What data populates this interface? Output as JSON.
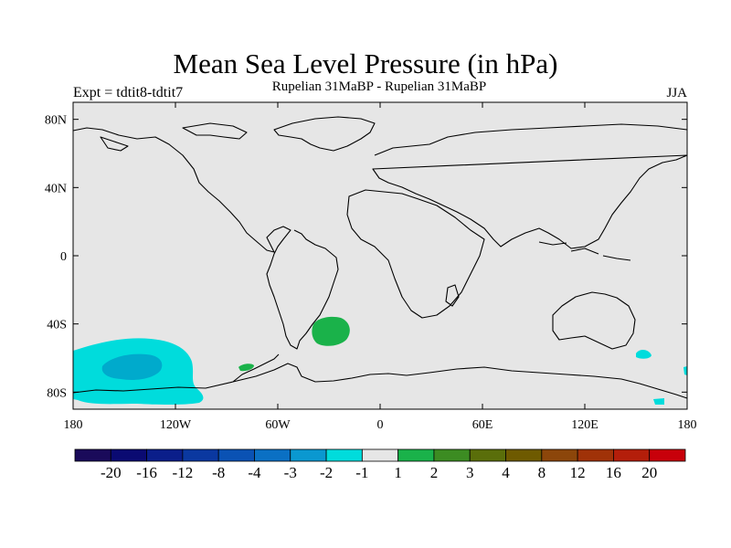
{
  "title": "Mean Sea Level Pressure (in hPa)",
  "subtitle": "Rupelian  31MaBP - Rupelian  31MaBP",
  "experiment": "Expt = tdtit8-tdtit7",
  "season": "JJA",
  "colors": {
    "background": "#e6e6e6",
    "coast": "#000000",
    "neg_light": "#00dcdc",
    "neg_mid": "#00aacc",
    "pos_light": "#1ab24a"
  },
  "chart_data": {
    "type": "heatmap",
    "map_projection": "cylindrical-equidistant",
    "title": "Mean Sea Level Pressure (in hPa)",
    "x_ticks": [
      {
        "lon": -180,
        "label": "180"
      },
      {
        "lon": -120,
        "label": "120W"
      },
      {
        "lon": -60,
        "label": "60W"
      },
      {
        "lon": 0,
        "label": "0"
      },
      {
        "lon": 60,
        "label": "60E"
      },
      {
        "lon": 120,
        "label": "120E"
      },
      {
        "lon": 180,
        "label": "180"
      }
    ],
    "y_ticks": [
      {
        "lat": 80,
        "label": "80N"
      },
      {
        "lat": 40,
        "label": "40N"
      },
      {
        "lat": 0,
        "label": "0"
      },
      {
        "lat": -40,
        "label": "40S"
      },
      {
        "lat": -80,
        "label": "80S"
      }
    ],
    "lon_range": [
      -180,
      180
    ],
    "lat_range": [
      -90,
      90
    ],
    "colorbar": {
      "colors": [
        "#1a0a5a",
        "#0a0a72",
        "#0a1e8a",
        "#0a38a0",
        "#0a52b4",
        "#0a70c4",
        "#0a98d0",
        "#00dcdc",
        "#e6e6e6",
        "#1ab24a",
        "#3c8c22",
        "#5a6e0a",
        "#6e5a00",
        "#8c460a",
        "#a03208",
        "#b41e0a",
        "#c8000a"
      ],
      "labels": [
        "-20",
        "-16",
        "-12",
        "-8",
        "-4",
        "-3",
        "-2",
        "-1",
        "1",
        "2",
        "3",
        "4",
        "8",
        "12",
        "16",
        "20"
      ]
    },
    "anomaly_regions": [
      {
        "name": "south-pacific-negative-outer",
        "level": "-2 to -1",
        "lon_range": [
          -180,
          -100
        ],
        "lat_range": [
          -85,
          -50
        ]
      },
      {
        "name": "south-pacific-negative-core",
        "level": "-3 to -2",
        "lon_range": [
          -165,
          -133
        ],
        "lat_range": [
          -72,
          -61
        ]
      },
      {
        "name": "south-atlantic-positive",
        "level": "1 to 2",
        "lon_range": [
          -40,
          -20
        ],
        "lat_range": [
          -53,
          -37
        ]
      },
      {
        "name": "drake-passage-positive",
        "level": "1 to 2",
        "lon_range": [
          -85,
          -75
        ],
        "lat_range": [
          -66,
          -63
        ]
      },
      {
        "name": "tasman-negative",
        "level": "-2 to -1",
        "lon_range": [
          150,
          158
        ],
        "lat_range": [
          -59,
          -53
        ]
      },
      {
        "name": "antarctic-coast-negative",
        "level": "-2 to -1",
        "lon_range": [
          150,
          158
        ],
        "lat_range": [
          -86,
          -84
        ]
      }
    ]
  }
}
